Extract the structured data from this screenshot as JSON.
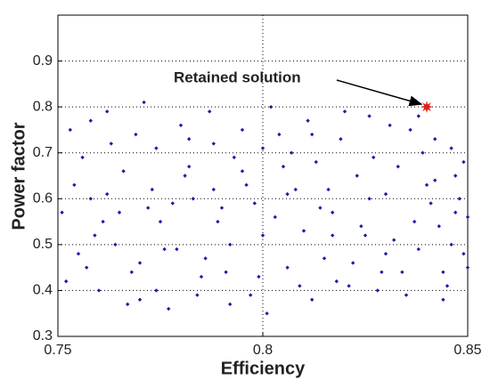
{
  "chart_data": {
    "type": "scatter",
    "xlabel": "Efficiency",
    "ylabel": "Power factor",
    "xlim": [
      0.75,
      0.85
    ],
    "ylim": [
      0.3,
      1.0
    ],
    "xticks": [
      0.75,
      0.8,
      0.85
    ],
    "yticks": [
      0.3,
      0.4,
      0.5,
      0.6,
      0.7,
      0.8,
      0.9
    ],
    "grid": true,
    "color": "#1c1ca8",
    "x": [
      0.752,
      0.758,
      0.761,
      0.766,
      0.77,
      0.774,
      0.779,
      0.783,
      0.787,
      0.791,
      0.796,
      0.8,
      0.804,
      0.809,
      0.813,
      0.817,
      0.822,
      0.826,
      0.83,
      0.835,
      0.839,
      0.843,
      0.847,
      0.849,
      0.754,
      0.757,
      0.763,
      0.767,
      0.772,
      0.776,
      0.78,
      0.785,
      0.789,
      0.793,
      0.797,
      0.802,
      0.806,
      0.81,
      0.815,
      0.819,
      0.823,
      0.828,
      0.832,
      0.836,
      0.841,
      0.844,
      0.846,
      0.85,
      0.751,
      0.756,
      0.76,
      0.764,
      0.769,
      0.773,
      0.777,
      0.782,
      0.786,
      0.79,
      0.795,
      0.799,
      0.803,
      0.807,
      0.812,
      0.816,
      0.82,
      0.825,
      0.829,
      0.833,
      0.838,
      0.842,
      0.845,
      0.848,
      0.753,
      0.759,
      0.762,
      0.768,
      0.771,
      0.775,
      0.781,
      0.784,
      0.788,
      0.792,
      0.798,
      0.801,
      0.805,
      0.811,
      0.814,
      0.818,
      0.824,
      0.827,
      0.831,
      0.837,
      0.84,
      0.844,
      0.846,
      0.849,
      0.755,
      0.758,
      0.762,
      0.765,
      0.77,
      0.774,
      0.778,
      0.782,
      0.788,
      0.792,
      0.795,
      0.8,
      0.806,
      0.808,
      0.812,
      0.817,
      0.821,
      0.826,
      0.83,
      0.834,
      0.838,
      0.842,
      0.847,
      0.85
    ],
    "values": [
      0.42,
      0.77,
      0.55,
      0.66,
      0.38,
      0.71,
      0.49,
      0.6,
      0.79,
      0.44,
      0.63,
      0.52,
      0.74,
      0.41,
      0.68,
      0.57,
      0.46,
      0.78,
      0.61,
      0.39,
      0.7,
      0.54,
      0.65,
      0.48,
      0.63,
      0.45,
      0.72,
      0.37,
      0.58,
      0.49,
      0.76,
      0.43,
      0.55,
      0.69,
      0.39,
      0.8,
      0.61,
      0.53,
      0.47,
      0.73,
      0.65,
      0.4,
      0.51,
      0.75,
      0.59,
      0.44,
      0.71,
      0.56,
      0.57,
      0.69,
      0.4,
      0.5,
      0.74,
      0.62,
      0.36,
      0.67,
      0.47,
      0.58,
      0.75,
      0.43,
      0.56,
      0.7,
      0.38,
      0.62,
      0.79,
      0.52,
      0.44,
      0.67,
      0.49,
      0.73,
      0.41,
      0.6,
      0.75,
      0.52,
      0.61,
      0.44,
      0.81,
      0.55,
      0.65,
      0.39,
      0.72,
      0.5,
      0.59,
      0.35,
      0.67,
      0.77,
      0.58,
      0.42,
      0.54,
      0.69,
      0.76,
      0.55,
      0.63,
      0.38,
      0.5,
      0.68,
      0.48,
      0.6,
      0.79,
      0.57,
      0.46,
      0.4,
      0.59,
      0.73,
      0.62,
      0.37,
      0.66,
      0.71,
      0.45,
      0.62,
      0.74,
      0.52,
      0.41,
      0.6,
      0.48,
      0.44,
      0.78,
      0.64,
      0.57,
      0.45
    ],
    "highlight": {
      "x": 0.84,
      "y": 0.8,
      "color": "#e0201c"
    },
    "annotation": "Retained solution"
  }
}
